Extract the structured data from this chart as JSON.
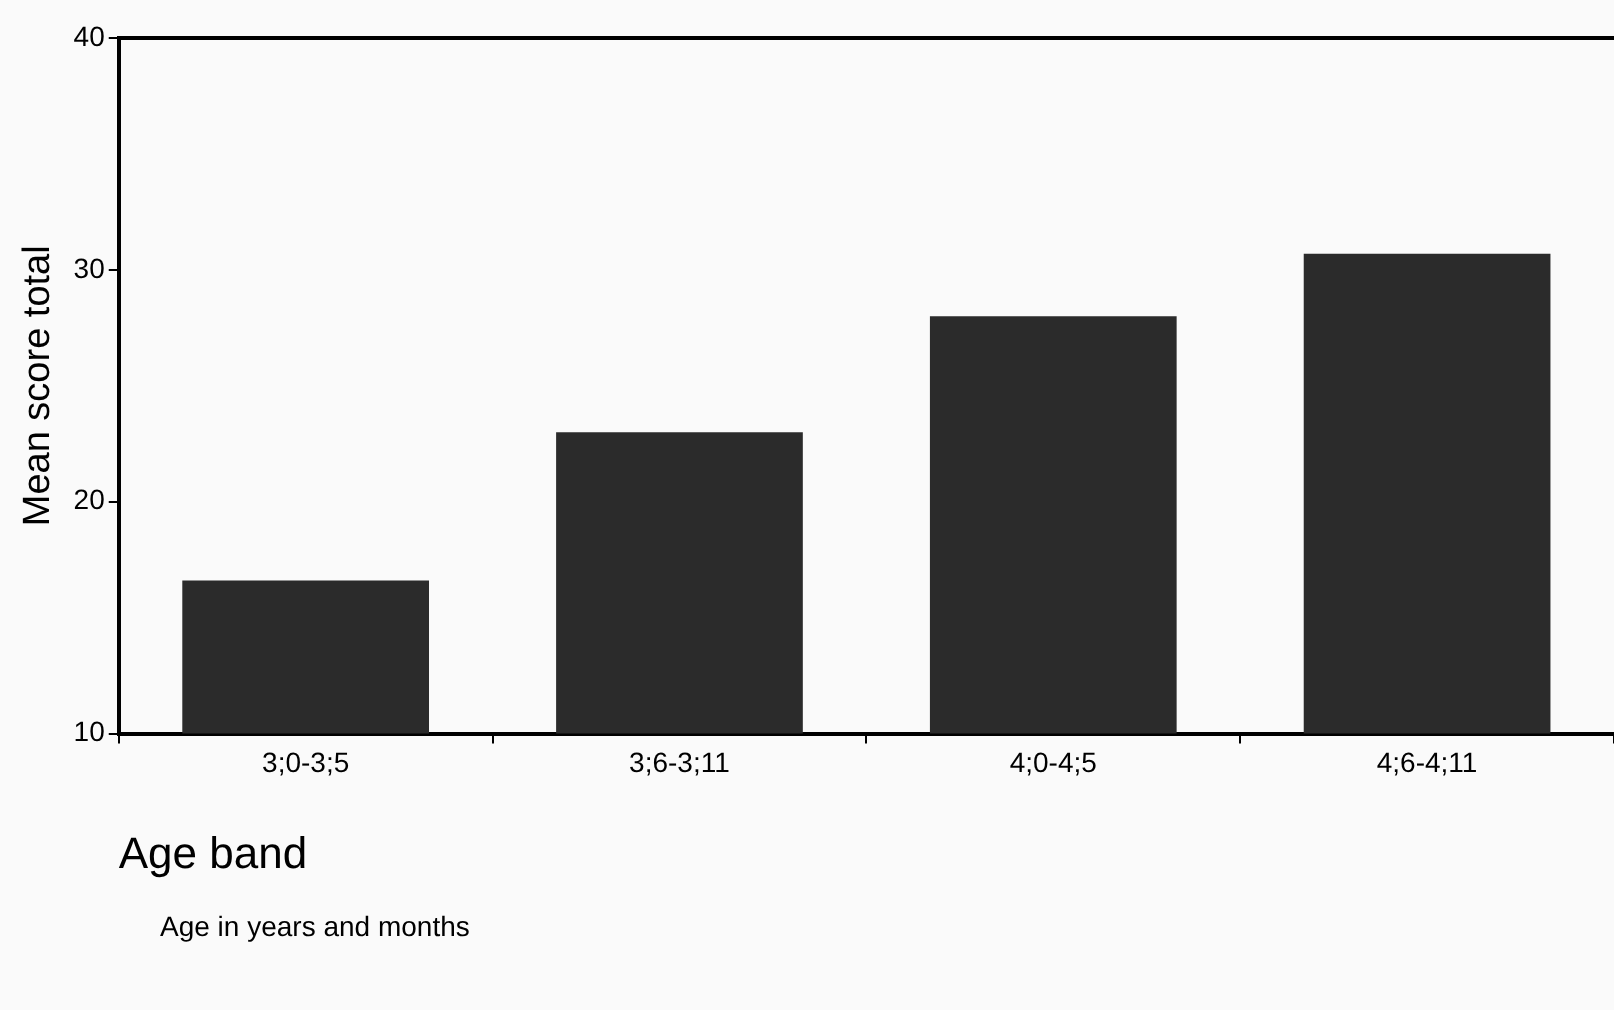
{
  "chart_data": {
    "type": "bar",
    "xlabel": "Age band",
    "ylabel": "Mean score total",
    "categories": [
      "3;0-3;5",
      "3;6-3;11",
      "4;0-4;5",
      "4;6-4;11"
    ],
    "values": [
      16.6,
      23.0,
      28.0,
      30.7
    ],
    "color": "#2b2b2b",
    "ylim": [
      10,
      40
    ],
    "yticks": [
      10,
      20,
      30,
      40
    ],
    "grid": false,
    "legend": false,
    "annotations": [
      "Age in years and months"
    ]
  }
}
